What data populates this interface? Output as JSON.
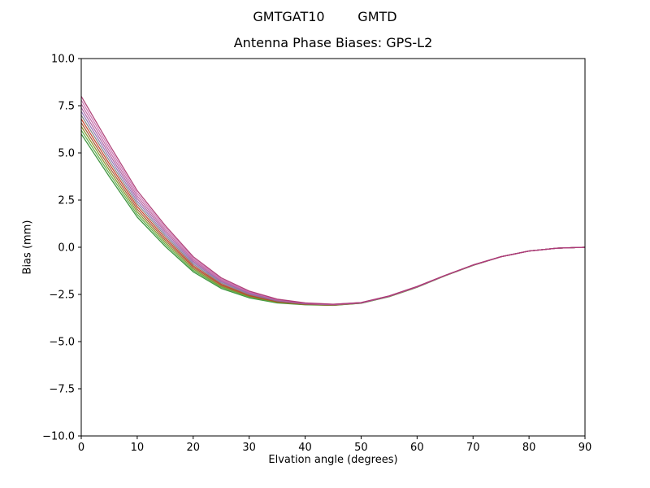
{
  "figure": {
    "suptitle": "GMTGAT10        GMTD",
    "background": "#ffffff",
    "axes_color": "#000000"
  },
  "chart_data": {
    "type": "line",
    "title": "Antenna Phase Biases: GPS-L2",
    "xlabel": "Elvation angle (degrees)",
    "ylabel": "Bias (mm)",
    "xlim": [
      0,
      90
    ],
    "ylim": [
      -10,
      10
    ],
    "grid": false,
    "legend": "none",
    "xtick_values": [
      0,
      10,
      20,
      30,
      40,
      50,
      60,
      70,
      80,
      90
    ],
    "xtick_labels": [
      "0",
      "10",
      "20",
      "30",
      "40",
      "50",
      "60",
      "70",
      "80",
      "90"
    ],
    "ytick_values": [
      -10,
      -7.5,
      -5,
      -2.5,
      0,
      2.5,
      5,
      7.5,
      10
    ],
    "ytick_labels": [
      "−10.0",
      "−7.5",
      "−5.0",
      "−2.5",
      "0.0",
      "2.5",
      "5.0",
      "7.5",
      "10.0"
    ],
    "x": [
      0,
      5,
      10,
      15,
      20,
      25,
      30,
      35,
      40,
      45,
      50,
      55,
      60,
      65,
      70,
      75,
      80,
      85,
      90
    ],
    "series": [
      {
        "name": "L01",
        "color": "#2e8b2e",
        "values": [
          6.0,
          3.75,
          1.6,
          0.05,
          -1.3,
          -2.18,
          -2.68,
          -2.95,
          -3.05,
          -3.08,
          -2.97,
          -2.62,
          -2.12,
          -1.51,
          -0.96,
          -0.5,
          -0.2,
          -0.05,
          0.0
        ]
      },
      {
        "name": "L02",
        "color": "#55a843",
        "values": [
          6.2,
          3.92,
          1.74,
          0.16,
          -1.22,
          -2.12,
          -2.64,
          -2.93,
          -3.04,
          -3.07,
          -2.97,
          -2.62,
          -2.12,
          -1.51,
          -0.96,
          -0.5,
          -0.2,
          -0.05,
          0.0
        ]
      },
      {
        "name": "L03",
        "color": "#7e8c1e",
        "values": [
          6.4,
          4.09,
          1.88,
          0.27,
          -1.14,
          -2.07,
          -2.61,
          -2.91,
          -3.03,
          -3.07,
          -2.96,
          -2.61,
          -2.11,
          -1.51,
          -0.96,
          -0.5,
          -0.2,
          -0.05,
          0.0
        ]
      },
      {
        "name": "L04",
        "color": "#a0522d",
        "values": [
          6.6,
          4.26,
          2.02,
          0.38,
          -1.06,
          -2.01,
          -2.57,
          -2.89,
          -3.02,
          -3.06,
          -2.96,
          -2.61,
          -2.11,
          -1.5,
          -0.95,
          -0.5,
          -0.2,
          -0.05,
          0.0
        ]
      },
      {
        "name": "L05",
        "color": "#c23b22",
        "values": [
          6.8,
          4.43,
          2.16,
          0.49,
          -0.98,
          -1.96,
          -2.54,
          -2.87,
          -3.01,
          -3.06,
          -2.95,
          -2.6,
          -2.1,
          -1.5,
          -0.95,
          -0.5,
          -0.2,
          -0.05,
          0.0
        ]
      },
      {
        "name": "L06",
        "color": "#7f7f7f",
        "values": [
          7.0,
          4.6,
          2.3,
          0.6,
          -0.9,
          -1.9,
          -2.5,
          -2.85,
          -3.0,
          -3.05,
          -2.95,
          -2.6,
          -2.1,
          -1.5,
          -0.95,
          -0.5,
          -0.2,
          -0.05,
          0.0
        ]
      },
      {
        "name": "L07",
        "color": "#8c6bb1",
        "values": [
          7.2,
          4.77,
          2.44,
          0.71,
          -0.82,
          -1.84,
          -2.46,
          -2.83,
          -2.99,
          -3.04,
          -2.95,
          -2.6,
          -2.1,
          -1.5,
          -0.95,
          -0.5,
          -0.2,
          -0.05,
          0.0
        ]
      },
      {
        "name": "L08",
        "color": "#a85c9e",
        "values": [
          7.4,
          4.94,
          2.58,
          0.82,
          -0.74,
          -1.79,
          -2.43,
          -2.81,
          -2.98,
          -3.04,
          -2.94,
          -2.59,
          -2.09,
          -1.5,
          -0.95,
          -0.5,
          -0.2,
          -0.05,
          0.0
        ]
      },
      {
        "name": "L09",
        "color": "#bf5f9f",
        "values": [
          7.6,
          5.11,
          2.72,
          0.93,
          -0.66,
          -1.73,
          -2.39,
          -2.79,
          -2.97,
          -3.03,
          -2.94,
          -2.59,
          -2.09,
          -1.49,
          -0.94,
          -0.5,
          -0.2,
          -0.05,
          0.0
        ]
      },
      {
        "name": "L10",
        "color": "#c96fae",
        "values": [
          7.8,
          5.28,
          2.86,
          1.04,
          -0.58,
          -1.68,
          -2.36,
          -2.77,
          -2.96,
          -3.03,
          -2.93,
          -2.58,
          -2.08,
          -1.49,
          -0.94,
          -0.5,
          -0.2,
          -0.05,
          0.0
        ]
      },
      {
        "name": "L11",
        "color": "#a8336e",
        "values": [
          8.0,
          5.45,
          3.0,
          1.15,
          -0.5,
          -1.62,
          -2.32,
          -2.75,
          -2.95,
          -3.02,
          -2.93,
          -2.58,
          -2.08,
          -1.49,
          -0.94,
          -0.5,
          -0.2,
          -0.05,
          0.0
        ]
      }
    ]
  }
}
